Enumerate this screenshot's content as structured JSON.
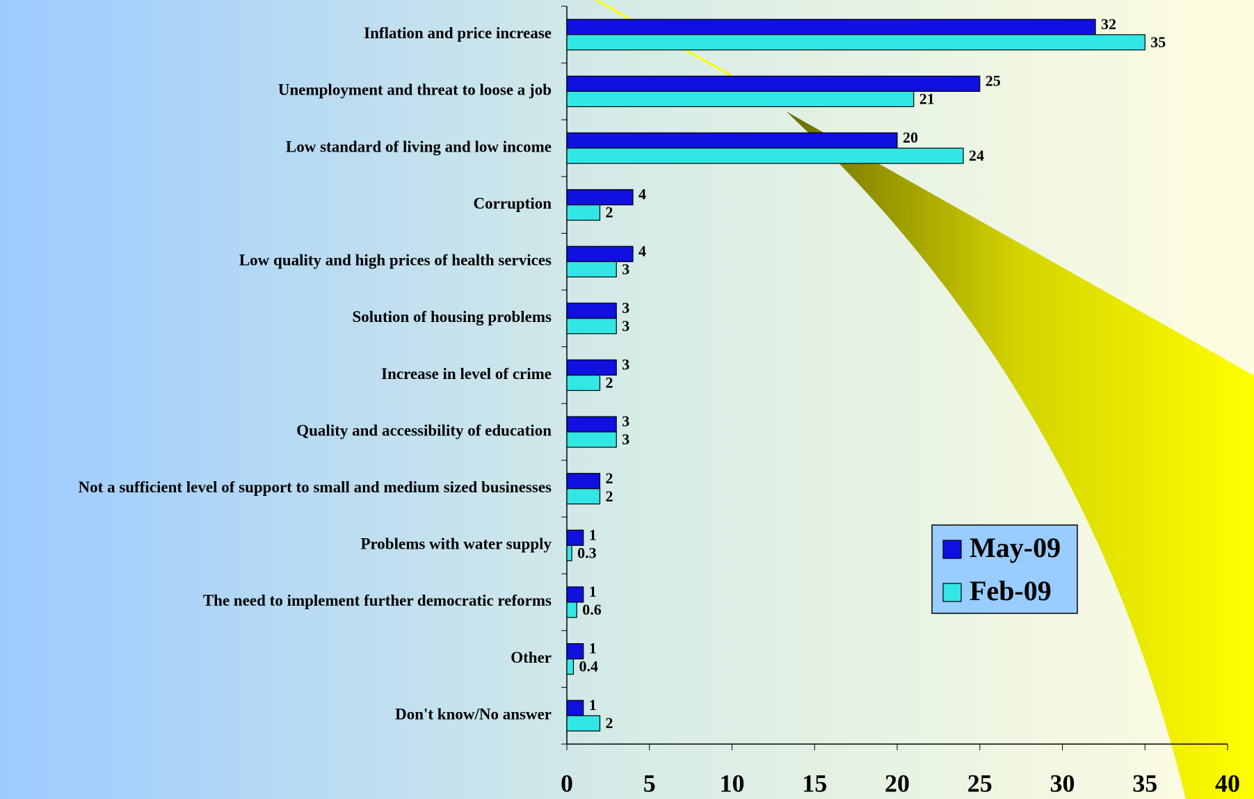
{
  "chart_data": {
    "type": "barh",
    "categories": [
      "Inflation and price increase",
      "Unemployment and threat to loose a job",
      "Low standard of living and low income",
      "Corruption",
      "Low quality and high prices of health services",
      "Solution of housing problems",
      "Increase in level of crime",
      "Quality and accessibility of education",
      "Not a sufficient level of support to small and medium sized businesses",
      "Problems with water supply",
      "The need to implement further democratic reforms",
      "Other",
      "Don't know/No answer"
    ],
    "series": [
      {
        "name": "May-09",
        "color": "#1010e0",
        "values": [
          32,
          25,
          20,
          4,
          4,
          3,
          3,
          3,
          2,
          1,
          1,
          1,
          1
        ]
      },
      {
        "name": "Feb-09",
        "color": "#33e6e6",
        "values": [
          35,
          21,
          24,
          2,
          3,
          3,
          2,
          3,
          2,
          0.3,
          0.6,
          0.4,
          2
        ]
      }
    ],
    "xlim": [
      0,
      40
    ],
    "xticks": [
      0,
      5,
      10,
      15,
      20,
      25,
      30,
      35,
      40
    ],
    "legend": "right"
  }
}
